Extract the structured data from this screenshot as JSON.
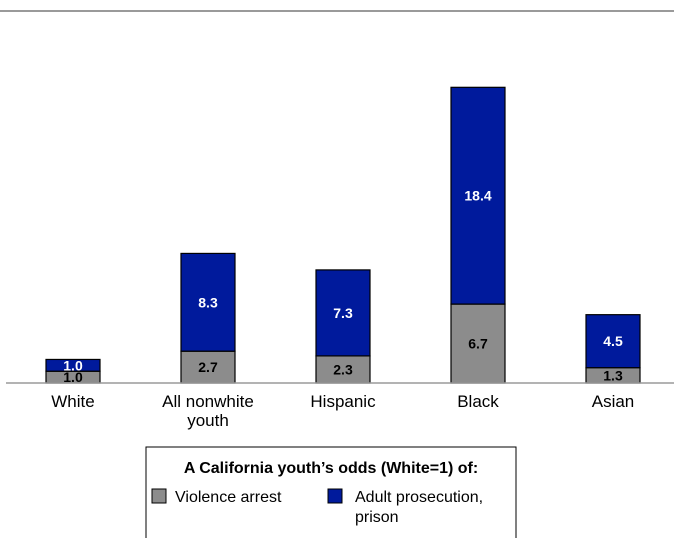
{
  "chart_data": {
    "type": "bar",
    "stacked": true,
    "categories": [
      "White",
      "All nonwhite youth",
      "Hispanic",
      "Black",
      "Asian"
    ],
    "series": [
      {
        "name": "Violence arrest",
        "values": [
          1.0,
          2.7,
          2.3,
          6.7,
          1.3
        ],
        "color": "#8c8c8c",
        "label_color": "#000000"
      },
      {
        "name": "Adult prosecution, prison",
        "values": [
          1.0,
          8.3,
          7.3,
          18.4,
          4.5
        ],
        "color": "#001a9c",
        "label_color": "#ffffff"
      }
    ],
    "legend": {
      "title": "A California youth’s odds (White=1) of:",
      "position": "bottom-center"
    },
    "ylim": [
      0,
      26.4
    ],
    "grid": false
  }
}
